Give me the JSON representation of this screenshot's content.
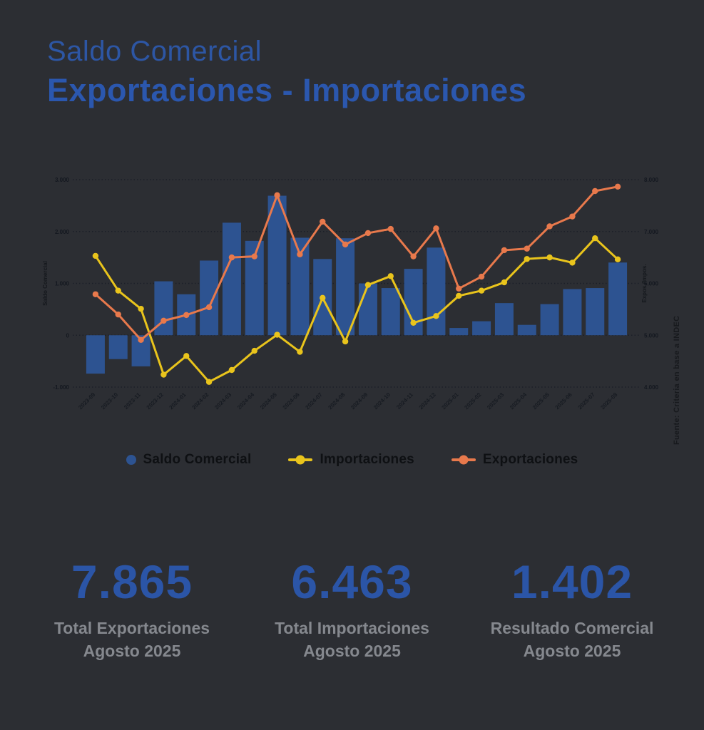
{
  "header": {
    "title_line1": "Saldo Comercial",
    "title_line2": "Exportaciones - Importaciones"
  },
  "chart_data": {
    "type": "bar",
    "subtype": "combo-bar-line-dual-axis",
    "categories": [
      "2023-09",
      "2023-10",
      "2023-11",
      "2023-12",
      "2024-01",
      "2024-02",
      "2024-03",
      "2024-04",
      "2024-05",
      "2024-06",
      "2024-07",
      "2024-08",
      "2024-09",
      "2024-10",
      "2024-11",
      "2024-12",
      "2025-01",
      "2025-02",
      "2025-03",
      "2025-04",
      "2025-05",
      "2025-06",
      "2025-07",
      "2025-08"
    ],
    "series": [
      {
        "name": "Saldo Comercial",
        "type": "bar",
        "axis": "left",
        "color": "#2d5391",
        "values": [
          -740,
          -460,
          -600,
          1040,
          790,
          1440,
          2170,
          1820,
          2690,
          1880,
          1470,
          1870,
          1000,
          910,
          1280,
          1690,
          140,
          270,
          620,
          200,
          600,
          890,
          910,
          1402
        ]
      },
      {
        "name": "Importaciones",
        "type": "line",
        "axis": "right",
        "color": "#e9c41c",
        "values": [
          6530,
          5860,
          5510,
          4240,
          4600,
          4100,
          4330,
          4700,
          5010,
          4680,
          5720,
          4880,
          5970,
          6140,
          5240,
          5370,
          5760,
          5860,
          6020,
          6470,
          6500,
          6400,
          6870,
          6463
        ]
      },
      {
        "name": "Exportaciones",
        "type": "line",
        "axis": "right",
        "color": "#e8794c",
        "values": [
          5790,
          5400,
          4910,
          5280,
          5390,
          5540,
          6500,
          6520,
          7700,
          6560,
          7190,
          6750,
          6970,
          7050,
          6520,
          7060,
          5900,
          6130,
          6640,
          6670,
          7100,
          7290,
          7780,
          7865
        ]
      }
    ],
    "left_axis": {
      "title": "Saldo Comercial",
      "range": [
        -1000,
        3000
      ],
      "tick_values": [
        3000,
        2000,
        1000,
        0,
        -1000
      ],
      "tick_labels": [
        "3.000",
        "2.000",
        "1.000",
        "0",
        "-1.000"
      ]
    },
    "right_axis": {
      "title": "Expos./Impos.",
      "range": [
        4000,
        8000
      ],
      "tick_values": [
        8000,
        7000,
        6000,
        5000,
        4000
      ],
      "tick_labels": [
        "8.000",
        "7.000",
        "6.000",
        "5.000",
        "4.000"
      ]
    },
    "grid": true,
    "legend_position": "bottom"
  },
  "legend": [
    {
      "label": "Saldo Comercial",
      "color": "#2d5391",
      "marker": "circle"
    },
    {
      "label": "Importaciones",
      "color": "#e9c41c",
      "marker": "line-dot"
    },
    {
      "label": "Exportaciones",
      "color": "#e8794c",
      "marker": "line-dot"
    }
  ],
  "stats": [
    {
      "value": "7.865",
      "label": "Total Exportaciones",
      "sublabel": "Agosto 2025"
    },
    {
      "value": "6.463",
      "label": "Total Importaciones",
      "sublabel": "Agosto 2025"
    },
    {
      "value": "1.402",
      "label": "Resultado Comercial",
      "sublabel": "Agosto 2025"
    }
  ],
  "source_note": "Fuente: Criteria en base a INDEC",
  "colors": {
    "background": "#2c2e33",
    "title_blue": "#2b57ae",
    "stat_blue": "#2b55a7",
    "bar_blue": "#2d5391",
    "imports_yellow": "#e9c41c",
    "exports_orange": "#e8794c",
    "label_gray": "#85888e"
  }
}
